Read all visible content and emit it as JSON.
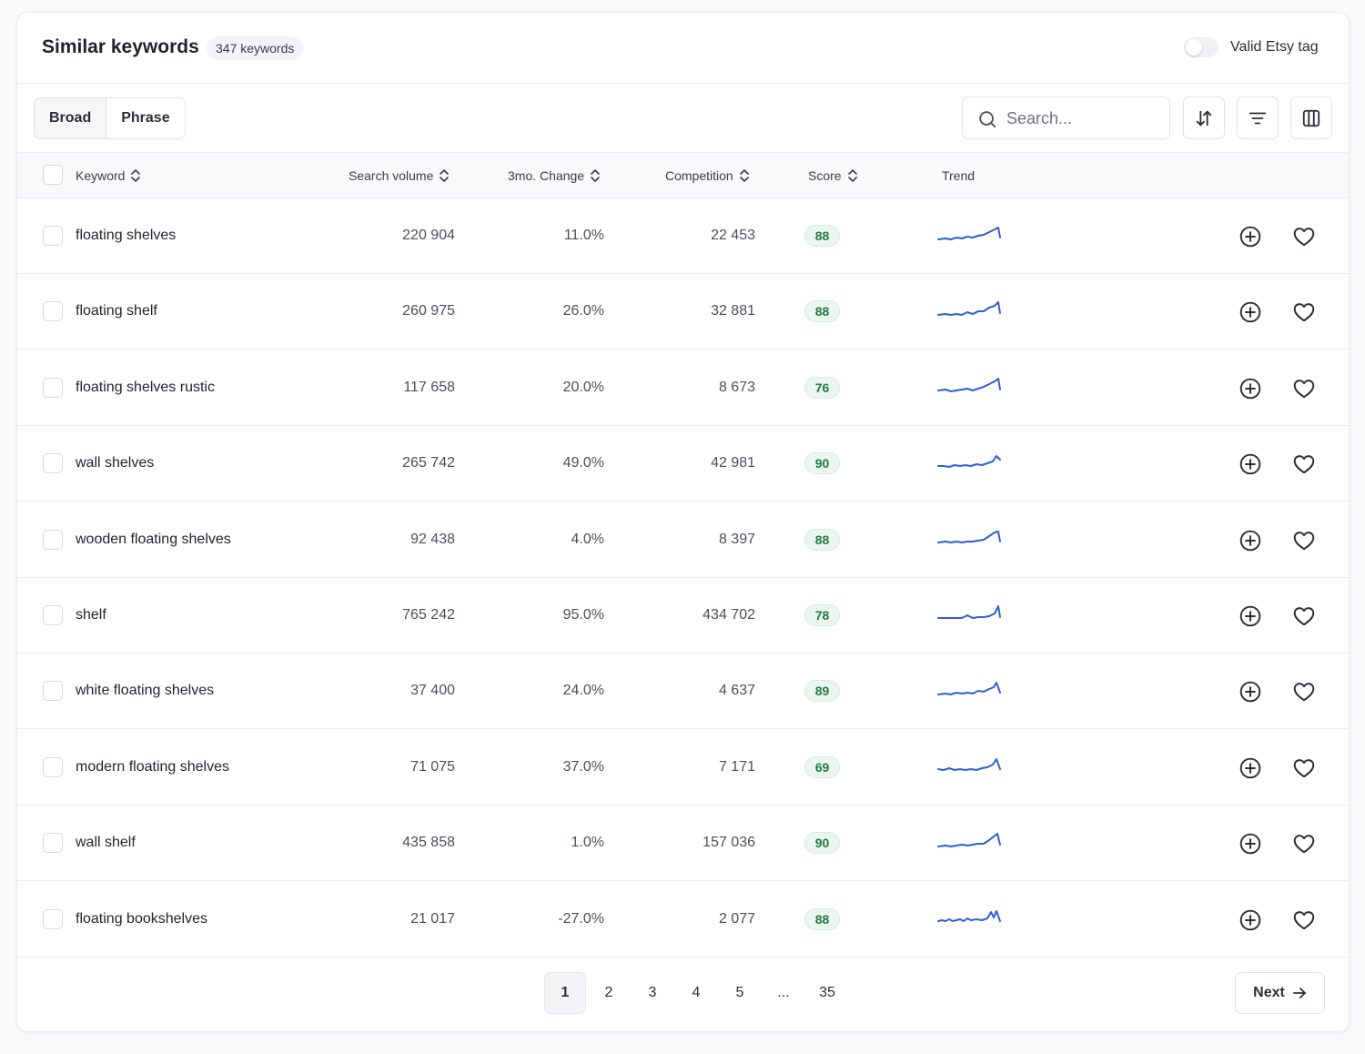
{
  "header": {
    "title": "Similar keywords",
    "count": "347 keywords",
    "toggle_label": "Valid Etsy tag"
  },
  "toolbar": {
    "match_tabs": [
      "Broad",
      "Phrase"
    ],
    "active_tab": "Broad",
    "search_placeholder": "Search...",
    "icons": [
      "sort-icon",
      "filter-icon",
      "columns-icon"
    ]
  },
  "table": {
    "columns": {
      "keyword": "Keyword",
      "volume": "Search volume",
      "change": "3mo. Change",
      "competition": "Competition",
      "score": "Score",
      "trend": "Trend"
    },
    "rows": [
      {
        "keyword": "floating shelves",
        "volume": "220 904",
        "change": "11.0%",
        "competition": "22 453",
        "score": "88"
      },
      {
        "keyword": "floating shelf",
        "volume": "260 975",
        "change": "26.0%",
        "competition": "32 881",
        "score": "88"
      },
      {
        "keyword": "floating shelves rustic",
        "volume": "117 658",
        "change": "20.0%",
        "competition": "8 673",
        "score": "76"
      },
      {
        "keyword": "wall shelves",
        "volume": "265 742",
        "change": "49.0%",
        "competition": "42 981",
        "score": "90"
      },
      {
        "keyword": "wooden floating shelves",
        "volume": "92 438",
        "change": "4.0%",
        "competition": "8 397",
        "score": "88"
      },
      {
        "keyword": "shelf",
        "volume": "765 242",
        "change": "95.0%",
        "competition": "434 702",
        "score": "78"
      },
      {
        "keyword": "white floating shelves",
        "volume": "37 400",
        "change": "24.0%",
        "competition": "4 637",
        "score": "89"
      },
      {
        "keyword": "modern floating shelves",
        "volume": "71 075",
        "change": "37.0%",
        "competition": "7 171",
        "score": "69"
      },
      {
        "keyword": "wall shelf",
        "volume": "435 858",
        "change": "1.0%",
        "competition": "157 036",
        "score": "90"
      },
      {
        "keyword": "floating bookshelves",
        "volume": "21 017",
        "change": "-27.0%",
        "competition": "2 077",
        "score": "88"
      }
    ],
    "row_actions": [
      "add-circle-icon",
      "heart-icon"
    ]
  },
  "pagination": {
    "pages": [
      "1",
      "2",
      "3",
      "4",
      "5",
      "...",
      "35"
    ],
    "current": "1",
    "next_label": "Next"
  },
  "colors": {
    "trend_line": "#2f5fd3",
    "score_bg": "#eaf6ee",
    "score_text": "#237a43"
  }
}
